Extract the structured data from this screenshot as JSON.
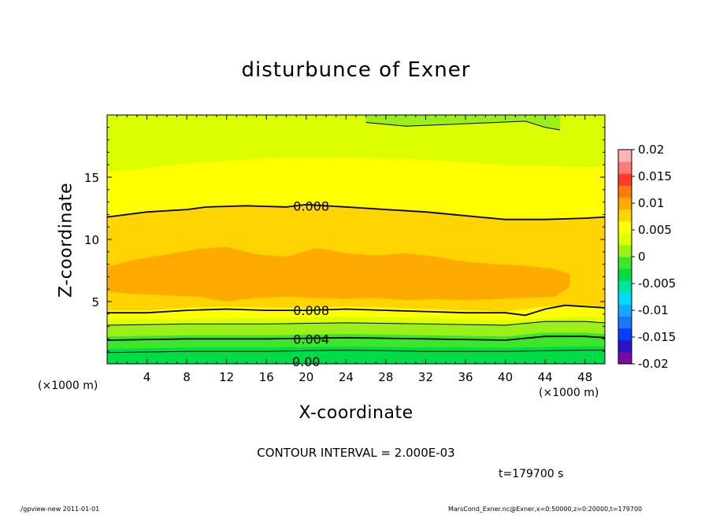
{
  "chart_data": {
    "type": "contour",
    "title": "disturbunce of Exner",
    "xlabel": "X-coordinate",
    "ylabel": "Z-coordinate",
    "x_unit": "(×1000 m)",
    "y_unit": "(×1000 m)",
    "xlim": [
      0,
      50
    ],
    "ylim": [
      0,
      20
    ],
    "x_ticks": [
      4,
      8,
      12,
      16,
      20,
      24,
      28,
      32,
      36,
      40,
      44,
      48
    ],
    "y_ticks": [
      5,
      10,
      15
    ],
    "colorbar": {
      "ticks": [
        "0.02",
        "0.015",
        "0.01",
        "0.005",
        "0",
        "-0.005",
        "-0.01",
        "-0.015",
        "-0.02"
      ],
      "levels": [
        -0.02,
        -0.0175,
        -0.015,
        -0.0125,
        -0.01,
        -0.0075,
        -0.005,
        -0.0025,
        0,
        0.0025,
        0.005,
        0.0075,
        0.01,
        0.0125,
        0.015,
        0.0175,
        0.02
      ],
      "colors": [
        "#7a0aa3",
        "#2a14c8",
        "#0a3cff",
        "#1e78ff",
        "#14a8ff",
        "#00dcff",
        "#00e6a0",
        "#00dc46",
        "#3ce628",
        "#9af018",
        "#dcff00",
        "#ffff00",
        "#ffd400",
        "#ffaa00",
        "#ff7a0a",
        "#ff3c28",
        "#ff7a78",
        "#ffb4b4"
      ]
    },
    "contour_interval": 0.002,
    "contour_labels": [
      {
        "text": "0.008",
        "x": 20.5,
        "y": 12.7
      },
      {
        "text": "0.008",
        "x": 20.5,
        "y": 4.3
      },
      {
        "text": "0.004",
        "x": 20.5,
        "y": 2.0
      },
      {
        "text": "0.00",
        "x": 20.0,
        "y": 0.2
      }
    ],
    "contour_lines": [
      {
        "value": 0.008,
        "x": [
          0,
          4,
          8,
          10,
          14,
          18,
          20,
          24,
          28,
          32,
          36,
          40,
          44,
          48,
          50
        ],
        "y": [
          11.8,
          12.2,
          12.4,
          12.6,
          12.7,
          12.6,
          12.8,
          12.6,
          12.4,
          12.2,
          11.9,
          11.6,
          11.6,
          11.7,
          11.8
        ]
      },
      {
        "value": 0.008,
        "x": [
          0,
          4,
          8,
          12,
          16,
          20,
          24,
          28,
          32,
          36,
          40,
          42,
          44,
          46,
          48,
          50
        ],
        "y": [
          4.1,
          4.1,
          4.3,
          4.4,
          4.3,
          4.3,
          4.4,
          4.3,
          4.2,
          4.1,
          4.1,
          3.9,
          4.4,
          4.7,
          4.6,
          4.5
        ]
      },
      {
        "value": 0.006,
        "x": [
          0,
          8,
          16,
          24,
          32,
          40,
          44,
          48,
          50
        ],
        "y": [
          3.1,
          3.2,
          3.2,
          3.3,
          3.2,
          3.1,
          3.4,
          3.4,
          3.3
        ]
      },
      {
        "value": 0.004,
        "x": [
          0,
          8,
          16,
          24,
          32,
          40,
          44,
          48,
          50
        ],
        "y": [
          1.9,
          2.0,
          2.0,
          2.1,
          2.0,
          1.9,
          2.2,
          2.2,
          2.1
        ]
      },
      {
        "value": 0.002,
        "x": [
          0,
          8,
          16,
          24,
          32,
          40,
          48,
          50
        ],
        "y": [
          0.9,
          1.0,
          1.0,
          1.1,
          1.0,
          1.0,
          1.1,
          1.1
        ]
      },
      {
        "value": 0.005,
        "x": [
          26,
          30,
          36,
          42,
          44,
          45.5
        ],
        "y": [
          19.4,
          19.1,
          19.3,
          19.5,
          19.0,
          18.8
        ]
      }
    ],
    "filled_bands": [
      {
        "value": 0.005,
        "color": "#dcff00",
        "x": [
          0,
          8,
          16,
          24,
          32,
          40,
          48,
          50
        ],
        "top": [
          20,
          20,
          20,
          20,
          20,
          20,
          20,
          20
        ],
        "bottom": [
          0,
          0,
          0,
          0,
          0,
          0,
          0,
          0
        ]
      },
      {
        "value": 0.0075,
        "color": "#ffff00",
        "x": [
          0,
          8,
          16,
          24,
          32,
          40,
          48,
          50
        ],
        "top": [
          15.4,
          16.1,
          16.5,
          16.6,
          16.4,
          16.0,
          15.8,
          15.9
        ],
        "bottom": [
          3.6,
          3.6,
          3.7,
          3.8,
          3.7,
          3.5,
          3.8,
          3.8
        ]
      },
      {
        "value": 0.01,
        "color": "#ffd400",
        "x": [
          0,
          4,
          8,
          12,
          16,
          20,
          24,
          28,
          32,
          36,
          40,
          44,
          48,
          50
        ],
        "top": [
          11.8,
          12.2,
          12.4,
          12.6,
          12.7,
          12.7,
          12.7,
          12.5,
          12.3,
          12.0,
          11.6,
          11.6,
          11.7,
          11.8
        ],
        "bottom": [
          4.3,
          4.3,
          4.5,
          4.6,
          4.5,
          4.5,
          4.6,
          4.5,
          4.4,
          4.3,
          4.2,
          4.6,
          4.7,
          4.6
        ]
      },
      {
        "value": 0.0125,
        "color": "#ffaa00",
        "x": [
          0,
          3,
          6,
          9,
          12,
          15,
          18,
          21,
          24,
          27,
          30,
          33,
          36,
          39,
          42,
          45,
          46.5
        ],
        "top": [
          7.8,
          8.4,
          8.8,
          9.2,
          9.4,
          8.8,
          8.6,
          9.3,
          8.9,
          8.7,
          8.9,
          8.6,
          8.2,
          8.0,
          7.9,
          7.6,
          7.2
        ],
        "bottom": [
          5.8,
          5.6,
          5.5,
          5.4,
          5.0,
          5.3,
          5.4,
          5.3,
          5.2,
          5.3,
          5.1,
          5.2,
          5.1,
          5.2,
          5.3,
          5.4,
          6.2
        ]
      },
      {
        "value": 0.004,
        "color": "#9af018",
        "x": [
          0,
          8,
          16,
          24,
          32,
          40,
          44,
          48,
          50
        ],
        "top": [
          3.1,
          3.2,
          3.2,
          3.3,
          3.2,
          3.1,
          3.4,
          3.4,
          3.3
        ],
        "bottom": [
          0,
          0,
          0,
          0,
          0,
          0,
          0,
          0,
          0
        ]
      },
      {
        "value": 0.0025,
        "color": "#3ce628",
        "x": [
          0,
          8,
          16,
          24,
          32,
          40,
          44,
          48,
          50
        ],
        "top": [
          2.2,
          2.3,
          2.3,
          2.4,
          2.3,
          2.2,
          2.5,
          2.5,
          2.4
        ],
        "bottom": [
          0,
          0,
          0,
          0,
          0,
          0,
          0,
          0,
          0
        ]
      },
      {
        "value": 0.0,
        "color": "#00dc46",
        "x": [
          0,
          8,
          16,
          24,
          32,
          40,
          48,
          50
        ],
        "top": [
          1.2,
          1.3,
          1.3,
          1.4,
          1.3,
          1.3,
          1.4,
          1.4
        ],
        "bottom": [
          0,
          0,
          0,
          0,
          0,
          0,
          0,
          0
        ]
      },
      {
        "value": 0.005,
        "color": "#9af018",
        "x": [
          26,
          30,
          36,
          42,
          44,
          45.5
        ],
        "top": [
          20,
          20,
          20,
          20,
          20,
          20
        ],
        "bottom": [
          19.4,
          19.1,
          19.3,
          19.5,
          19.0,
          18.8
        ]
      }
    ]
  },
  "annotations": {
    "contour_interval_text": "CONTOUR INTERVAL = 2.000E-03",
    "time_text": "t=179700 s",
    "footer_left": "./gpview-new   2011-01-01",
    "footer_right": "MarsCond_Exner.nc@Exner,x=0:50000,z=0:20000,t=179700"
  }
}
